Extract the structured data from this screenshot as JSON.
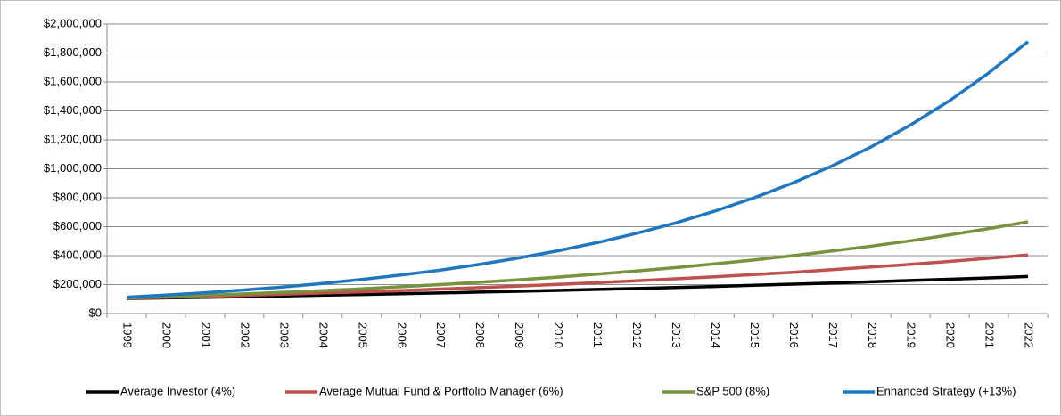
{
  "chart_data": {
    "type": "line",
    "categories": [
      "1999",
      "2000",
      "2001",
      "2002",
      "2003",
      "2004",
      "2005",
      "2006",
      "2007",
      "2008",
      "2009",
      "2010",
      "2011",
      "2012",
      "2013",
      "2014",
      "2015",
      "2016",
      "2017",
      "2018",
      "2019",
      "2020",
      "2021",
      "2022"
    ],
    "series": [
      {
        "name": "Average Investor (4%)",
        "color": "#000000",
        "values": [
          104000,
          108000,
          112000,
          117000,
          122000,
          127000,
          132000,
          137000,
          142000,
          148000,
          154000,
          160000,
          167000,
          173000,
          180000,
          187000,
          195000,
          203000,
          211000,
          219000,
          228000,
          237000,
          246000,
          256000
        ]
      },
      {
        "name": "Average Mutual Fund & Portfolio Manager (6%)",
        "color": "#c0504d",
        "values": [
          106000,
          112000,
          119000,
          126000,
          134000,
          142000,
          150000,
          159000,
          169000,
          179000,
          190000,
          201000,
          213000,
          226000,
          240000,
          254000,
          269000,
          285000,
          303000,
          321000,
          340000,
          360000,
          382000,
          405000
        ]
      },
      {
        "name": "S&P 500 (8%)",
        "color": "#77933c",
        "values": [
          108000,
          117000,
          126000,
          136000,
          147000,
          159000,
          171000,
          185000,
          200000,
          216000,
          233000,
          252000,
          272000,
          294000,
          317000,
          343000,
          370000,
          400000,
          432000,
          466000,
          503000,
          544000,
          587000,
          634000
        ]
      },
      {
        "name": "Enhanced Strategy (+13%)",
        "color": "#1f77c0",
        "values": [
          113000,
          128000,
          144000,
          163000,
          184000,
          208000,
          235000,
          266000,
          300000,
          339000,
          384000,
          433000,
          490000,
          553000,
          625000,
          707000,
          799000,
          902000,
          1020000,
          1152000,
          1302000,
          1471000,
          1663000,
          1879000
        ]
      }
    ],
    "ylim": [
      0,
      2000000
    ],
    "yticks": [
      {
        "value": 0,
        "label": "$0"
      },
      {
        "value": 200000,
        "label": "$200,000"
      },
      {
        "value": 400000,
        "label": "$400,000"
      },
      {
        "value": 600000,
        "label": "$600,000"
      },
      {
        "value": 800000,
        "label": "$800,000"
      },
      {
        "value": 1000000,
        "label": "$1,000,000"
      },
      {
        "value": 1200000,
        "label": "$1,200,000"
      },
      {
        "value": 1400000,
        "label": "$1,400,000"
      },
      {
        "value": 1600000,
        "label": "$1,600,000"
      },
      {
        "value": 1800000,
        "label": "$1,800,000"
      },
      {
        "value": 2000000,
        "label": "$2,000,000"
      }
    ],
    "grid": true,
    "legend": "bottom"
  }
}
